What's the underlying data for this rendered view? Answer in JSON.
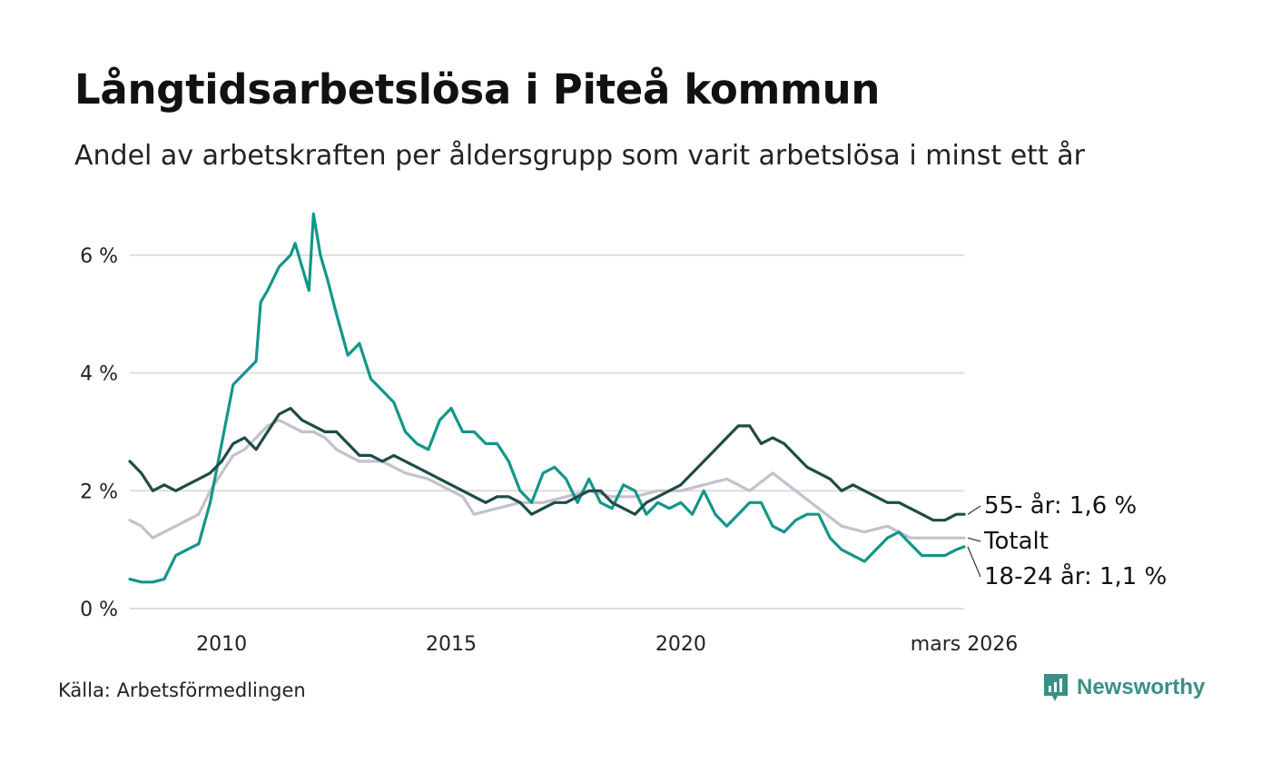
{
  "title": "Långtidsarbetslösa i Piteå kommun",
  "subtitle": "Andel av arbetskraften per åldersgrupp som varit arbetslösa i minst ett år",
  "source": "Källa: Arbetsförmedlingen",
  "brand": "Newsworthy",
  "chart_data": {
    "type": "line",
    "x_start": 2008.0,
    "x_end": 2026.17,
    "xlim": [
      2008.0,
      2026.17
    ],
    "ylim": [
      0,
      7
    ],
    "y_ticks": [
      0,
      2,
      4,
      6
    ],
    "y_tick_labels": [
      "0 %",
      "2 %",
      "4 %",
      "6 %"
    ],
    "x_ticks": [
      2010,
      2015,
      2020,
      2026.17
    ],
    "x_tick_labels": [
      "2010",
      "2015",
      "2020",
      "mars 2026"
    ],
    "grid": true,
    "colors": {
      "s55": "#1f4d45",
      "totalt": "#c4c1cd",
      "s1824": "#13968a",
      "grid": "#dddddd"
    },
    "series": [
      {
        "name": "Totalt",
        "key": "totalt",
        "label": "Totalt",
        "points": [
          [
            2008.0,
            1.5
          ],
          [
            2008.25,
            1.4
          ],
          [
            2008.5,
            1.2
          ],
          [
            2008.75,
            1.3
          ],
          [
            2009.0,
            1.4
          ],
          [
            2009.25,
            1.5
          ],
          [
            2009.5,
            1.6
          ],
          [
            2009.75,
            2.0
          ],
          [
            2010.0,
            2.3
          ],
          [
            2010.25,
            2.6
          ],
          [
            2010.5,
            2.7
          ],
          [
            2010.75,
            2.9
          ],
          [
            2011.0,
            3.1
          ],
          [
            2011.25,
            3.2
          ],
          [
            2011.5,
            3.1
          ],
          [
            2011.75,
            3.0
          ],
          [
            2012.0,
            3.0
          ],
          [
            2012.25,
            2.9
          ],
          [
            2012.5,
            2.7
          ],
          [
            2012.75,
            2.6
          ],
          [
            2013.0,
            2.5
          ],
          [
            2013.5,
            2.5
          ],
          [
            2014.0,
            2.3
          ],
          [
            2014.5,
            2.2
          ],
          [
            2015.0,
            2.0
          ],
          [
            2015.25,
            1.9
          ],
          [
            2015.5,
            1.6
          ],
          [
            2016.0,
            1.7
          ],
          [
            2016.5,
            1.8
          ],
          [
            2017.0,
            1.8
          ],
          [
            2017.5,
            1.9
          ],
          [
            2018.0,
            2.0
          ],
          [
            2018.5,
            1.9
          ],
          [
            2019.0,
            1.9
          ],
          [
            2019.5,
            2.0
          ],
          [
            2020.0,
            2.0
          ],
          [
            2020.5,
            2.1
          ],
          [
            2021.0,
            2.2
          ],
          [
            2021.5,
            2.0
          ],
          [
            2022.0,
            2.3
          ],
          [
            2022.5,
            2.0
          ],
          [
            2023.0,
            1.7
          ],
          [
            2023.5,
            1.4
          ],
          [
            2024.0,
            1.3
          ],
          [
            2024.5,
            1.4
          ],
          [
            2025.0,
            1.2
          ],
          [
            2025.5,
            1.2
          ],
          [
            2026.17,
            1.2
          ]
        ]
      },
      {
        "name": "18-24 år",
        "key": "s1824",
        "label": "18-24 år: 1,1 %",
        "points": [
          [
            2008.0,
            0.5
          ],
          [
            2008.25,
            0.45
          ],
          [
            2008.5,
            0.45
          ],
          [
            2008.75,
            0.5
          ],
          [
            2009.0,
            0.9
          ],
          [
            2009.25,
            1.0
          ],
          [
            2009.5,
            1.1
          ],
          [
            2009.75,
            1.8
          ],
          [
            2010.0,
            2.8
          ],
          [
            2010.25,
            3.8
          ],
          [
            2010.5,
            4.0
          ],
          [
            2010.75,
            4.2
          ],
          [
            2010.85,
            5.2
          ],
          [
            2011.0,
            5.4
          ],
          [
            2011.25,
            5.8
          ],
          [
            2011.5,
            6.0
          ],
          [
            2011.6,
            6.2
          ],
          [
            2011.75,
            5.8
          ],
          [
            2011.9,
            5.4
          ],
          [
            2012.0,
            6.7
          ],
          [
            2012.15,
            6.0
          ],
          [
            2012.3,
            5.6
          ],
          [
            2012.5,
            5.0
          ],
          [
            2012.75,
            4.3
          ],
          [
            2013.0,
            4.5
          ],
          [
            2013.25,
            3.9
          ],
          [
            2013.5,
            3.7
          ],
          [
            2013.75,
            3.5
          ],
          [
            2014.0,
            3.0
          ],
          [
            2014.25,
            2.8
          ],
          [
            2014.5,
            2.7
          ],
          [
            2014.75,
            3.2
          ],
          [
            2015.0,
            3.4
          ],
          [
            2015.25,
            3.0
          ],
          [
            2015.5,
            3.0
          ],
          [
            2015.75,
            2.8
          ],
          [
            2016.0,
            2.8
          ],
          [
            2016.25,
            2.5
          ],
          [
            2016.5,
            2.0
          ],
          [
            2016.75,
            1.8
          ],
          [
            2017.0,
            2.3
          ],
          [
            2017.25,
            2.4
          ],
          [
            2017.5,
            2.2
          ],
          [
            2017.75,
            1.8
          ],
          [
            2018.0,
            2.2
          ],
          [
            2018.25,
            1.8
          ],
          [
            2018.5,
            1.7
          ],
          [
            2018.75,
            2.1
          ],
          [
            2019.0,
            2.0
          ],
          [
            2019.25,
            1.6
          ],
          [
            2019.5,
            1.8
          ],
          [
            2019.75,
            1.7
          ],
          [
            2020.0,
            1.8
          ],
          [
            2020.25,
            1.6
          ],
          [
            2020.5,
            2.0
          ],
          [
            2020.75,
            1.6
          ],
          [
            2021.0,
            1.4
          ],
          [
            2021.25,
            1.6
          ],
          [
            2021.5,
            1.8
          ],
          [
            2021.75,
            1.8
          ],
          [
            2022.0,
            1.4
          ],
          [
            2022.25,
            1.3
          ],
          [
            2022.5,
            1.5
          ],
          [
            2022.75,
            1.6
          ],
          [
            2023.0,
            1.6
          ],
          [
            2023.25,
            1.2
          ],
          [
            2023.5,
            1.0
          ],
          [
            2023.75,
            0.9
          ],
          [
            2024.0,
            0.8
          ],
          [
            2024.25,
            1.0
          ],
          [
            2024.5,
            1.2
          ],
          [
            2024.75,
            1.3
          ],
          [
            2025.0,
            1.1
          ],
          [
            2025.25,
            0.9
          ],
          [
            2025.5,
            0.9
          ],
          [
            2025.75,
            0.9
          ],
          [
            2026.0,
            1.0
          ],
          [
            2026.17,
            1.05
          ]
        ]
      },
      {
        "name": "55- år",
        "key": "s55",
        "label": "55- år: 1,6 %",
        "points": [
          [
            2008.0,
            2.5
          ],
          [
            2008.25,
            2.3
          ],
          [
            2008.5,
            2.0
          ],
          [
            2008.75,
            2.1
          ],
          [
            2009.0,
            2.0
          ],
          [
            2009.25,
            2.1
          ],
          [
            2009.5,
            2.2
          ],
          [
            2009.75,
            2.3
          ],
          [
            2010.0,
            2.5
          ],
          [
            2010.25,
            2.8
          ],
          [
            2010.5,
            2.9
          ],
          [
            2010.75,
            2.7
          ],
          [
            2011.0,
            3.0
          ],
          [
            2011.25,
            3.3
          ],
          [
            2011.5,
            3.4
          ],
          [
            2011.75,
            3.2
          ],
          [
            2012.0,
            3.1
          ],
          [
            2012.25,
            3.0
          ],
          [
            2012.5,
            3.0
          ],
          [
            2012.75,
            2.8
          ],
          [
            2013.0,
            2.6
          ],
          [
            2013.25,
            2.6
          ],
          [
            2013.5,
            2.5
          ],
          [
            2013.75,
            2.6
          ],
          [
            2014.0,
            2.5
          ],
          [
            2014.25,
            2.4
          ],
          [
            2014.5,
            2.3
          ],
          [
            2014.75,
            2.2
          ],
          [
            2015.0,
            2.1
          ],
          [
            2015.25,
            2.0
          ],
          [
            2015.5,
            1.9
          ],
          [
            2015.75,
            1.8
          ],
          [
            2016.0,
            1.9
          ],
          [
            2016.25,
            1.9
          ],
          [
            2016.5,
            1.8
          ],
          [
            2016.75,
            1.6
          ],
          [
            2017.0,
            1.7
          ],
          [
            2017.25,
            1.8
          ],
          [
            2017.5,
            1.8
          ],
          [
            2017.75,
            1.9
          ],
          [
            2018.0,
            2.0
          ],
          [
            2018.25,
            2.0
          ],
          [
            2018.5,
            1.8
          ],
          [
            2018.75,
            1.7
          ],
          [
            2019.0,
            1.6
          ],
          [
            2019.25,
            1.8
          ],
          [
            2019.5,
            1.9
          ],
          [
            2019.75,
            2.0
          ],
          [
            2020.0,
            2.1
          ],
          [
            2020.25,
            2.3
          ],
          [
            2020.5,
            2.5
          ],
          [
            2020.75,
            2.7
          ],
          [
            2021.0,
            2.9
          ],
          [
            2021.25,
            3.1
          ],
          [
            2021.5,
            3.1
          ],
          [
            2021.75,
            2.8
          ],
          [
            2022.0,
            2.9
          ],
          [
            2022.25,
            2.8
          ],
          [
            2022.5,
            2.6
          ],
          [
            2022.75,
            2.4
          ],
          [
            2023.0,
            2.3
          ],
          [
            2023.25,
            2.2
          ],
          [
            2023.5,
            2.0
          ],
          [
            2023.75,
            2.1
          ],
          [
            2024.0,
            2.0
          ],
          [
            2024.25,
            1.9
          ],
          [
            2024.5,
            1.8
          ],
          [
            2024.75,
            1.8
          ],
          [
            2025.0,
            1.7
          ],
          [
            2025.25,
            1.6
          ],
          [
            2025.5,
            1.5
          ],
          [
            2025.75,
            1.5
          ],
          [
            2026.0,
            1.6
          ],
          [
            2026.17,
            1.6
          ]
        ]
      }
    ]
  }
}
